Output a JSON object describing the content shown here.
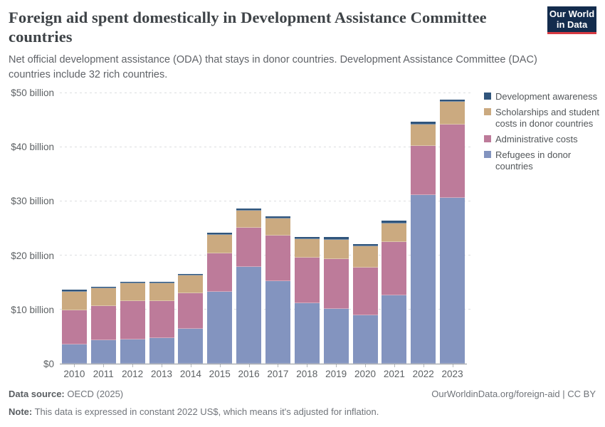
{
  "header": {
    "title": "Foreign aid spent domestically in Development Assistance Committee countries",
    "subtitle": "Net official development assistance (ODA) that stays in donor countries. Development Assistance Committee (DAC) countries include 32 rich countries.",
    "logo": {
      "line1": "Our World",
      "line2": "in Data",
      "bg_color": "#132c4d",
      "accent_color": "#d73a42"
    }
  },
  "chart_data": {
    "type": "bar",
    "stacked": true,
    "title": "Foreign aid spent domestically in Development Assistance Committee countries",
    "xlabel": "",
    "ylabel": "",
    "ylim": [
      0,
      50
    ],
    "grid": "dashed-horizontal",
    "legend_position": "right",
    "units": "billion constant 2022 US$",
    "categories": [
      "2010",
      "2011",
      "2012",
      "2013",
      "2014",
      "2015",
      "2016",
      "2017",
      "2018",
      "2019",
      "2020",
      "2021",
      "2022",
      "2023"
    ],
    "series": [
      {
        "name": "Refugees in donor countries",
        "color": "#8394bf",
        "values": [
          3.6,
          4.3,
          4.4,
          4.7,
          6.4,
          13.3,
          17.8,
          15.2,
          11.1,
          10.1,
          8.9,
          12.6,
          31.1,
          30.6
        ]
      },
      {
        "name": "Administrative costs",
        "color": "#bd7b9a",
        "values": [
          6.3,
          6.3,
          7.1,
          6.9,
          6.6,
          7.1,
          7.3,
          8.4,
          8.5,
          9.2,
          8.8,
          9.8,
          9.1,
          13.5
        ]
      },
      {
        "name": "Scholarships and student costs in donor countries",
        "color": "#cbaa80",
        "values": [
          3.4,
          3.3,
          3.3,
          3.2,
          3.3,
          3.3,
          3.1,
          3.2,
          3.4,
          3.6,
          3.9,
          3.5,
          3.9,
          4.2
        ]
      },
      {
        "name": "Development awareness",
        "color": "#30557c",
        "values": [
          0.3,
          0.3,
          0.3,
          0.3,
          0.3,
          0.4,
          0.4,
          0.4,
          0.4,
          0.4,
          0.4,
          0.5,
          0.5,
          0.4
        ]
      }
    ],
    "yticks": [
      {
        "value": 0,
        "label": "$0"
      },
      {
        "value": 10,
        "label": "$10 billion"
      },
      {
        "value": 20,
        "label": "$20 billion"
      },
      {
        "value": 30,
        "label": "$30 billion"
      },
      {
        "value": 40,
        "label": "$40 billion"
      },
      {
        "value": 50,
        "label": "$50 billion"
      }
    ]
  },
  "legend": {
    "items": [
      {
        "label": "Development awareness",
        "color": "#30557c"
      },
      {
        "label": "Scholarships and student costs in donor countries",
        "color": "#cbaa80"
      },
      {
        "label": "Administrative costs",
        "color": "#bd7b9a"
      },
      {
        "label": "Refugees in donor countries",
        "color": "#8394bf"
      }
    ]
  },
  "footer": {
    "source_label": "Data source:",
    "source_value": "OECD (2025)",
    "credit": "OurWorldinData.org/foreign-aid | CC BY",
    "note_label": "Note:",
    "note_value": "This data is expressed in constant 2022 US$, which means it's adjusted for inflation."
  }
}
